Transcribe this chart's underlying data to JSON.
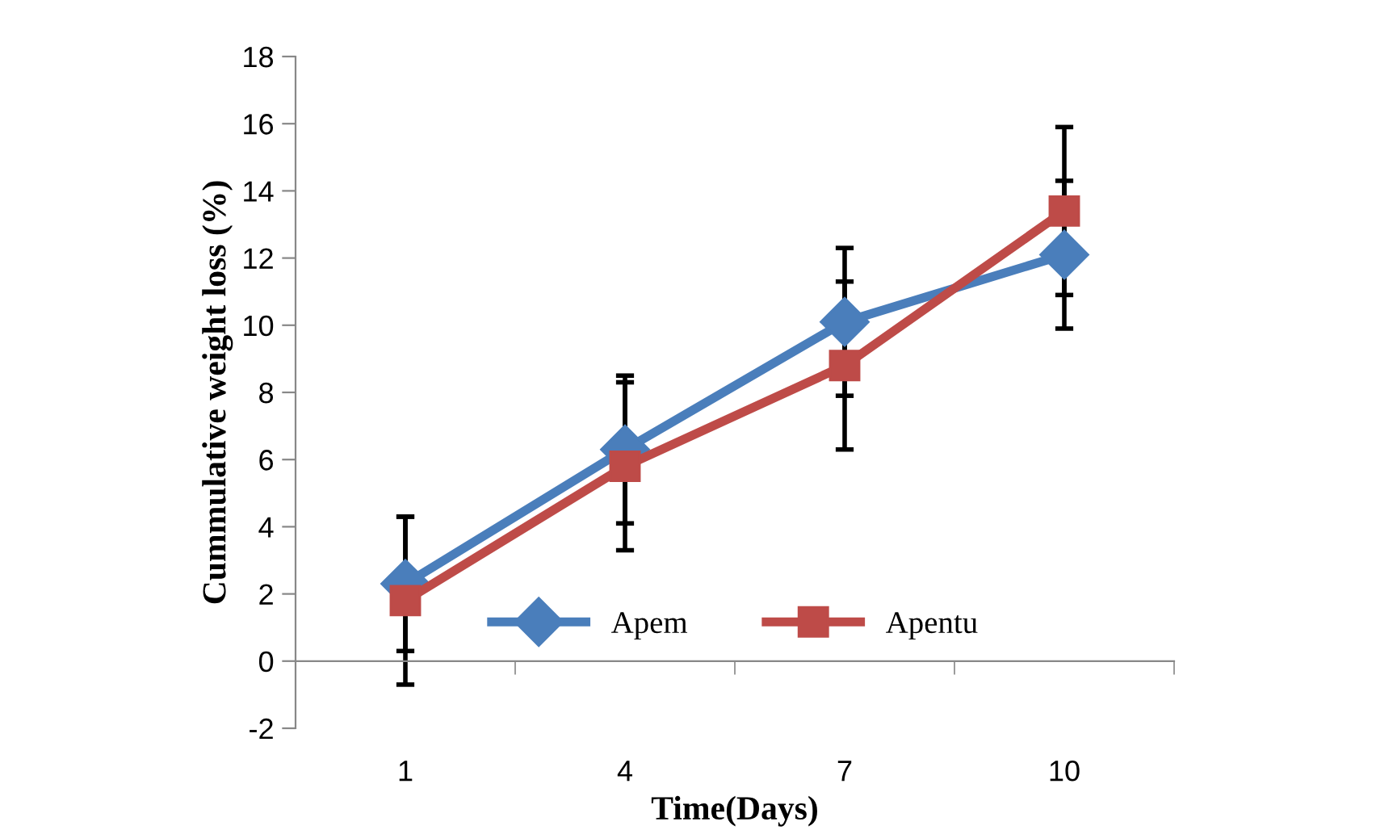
{
  "chart_data": {
    "type": "line",
    "xlabel": "Time(Days)",
    "ylabel": "Cummulative weight loss (%)",
    "categories": [
      "1",
      "4",
      "7",
      "10"
    ],
    "series": [
      {
        "name": "Apem",
        "color": "#4a7ebb",
        "marker": "diamond",
        "values": [
          2.3,
          6.3,
          10.1,
          12.1
        ],
        "errors": [
          2.0,
          2.2,
          2.2,
          2.2
        ]
      },
      {
        "name": "Apentu",
        "color": "#be4b48",
        "marker": "square",
        "values": [
          1.8,
          5.8,
          8.8,
          13.4
        ],
        "errors": [
          2.5,
          2.5,
          2.5,
          2.5
        ]
      }
    ],
    "ylim": [
      -2,
      18
    ],
    "yticks": [
      -2,
      0,
      2,
      4,
      6,
      8,
      10,
      12,
      14,
      16,
      18
    ],
    "legend": "bottom",
    "line_style": "solid"
  }
}
